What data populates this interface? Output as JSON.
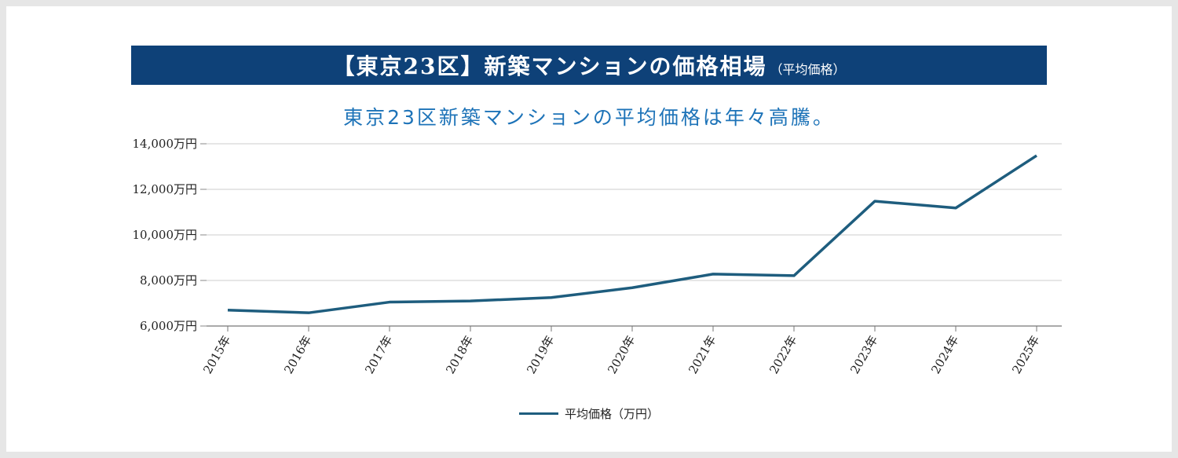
{
  "banner": {
    "title": "【東京23区】新築マンションの価格相場",
    "title_suffix": "（平均価格）"
  },
  "subtitle": "東京23区新築マンションの平均価格は年々高騰。",
  "colors": {
    "banner_bg": "#0e4178",
    "subtitle": "#1d73b8",
    "line": "#1e5d7e",
    "grid": "#cccccc"
  },
  "chart_data": {
    "type": "line",
    "categories": [
      "2015年",
      "2016年",
      "2017年",
      "2018年",
      "2019年",
      "2020年",
      "2021年",
      "2022年",
      "2023年",
      "2024年",
      "2025年"
    ],
    "series": [
      {
        "name": "平均価格（万円）",
        "values": [
          6700,
          6580,
          7050,
          7100,
          7250,
          7680,
          8280,
          8210,
          11480,
          11180,
          13480
        ]
      }
    ],
    "yticks": [
      "6,000万円",
      "8,000万円",
      "10,000万円",
      "12,000万円",
      "14,000万円"
    ],
    "ylim": [
      6000,
      14000
    ],
    "grid": true,
    "legend": "bottom-center"
  }
}
